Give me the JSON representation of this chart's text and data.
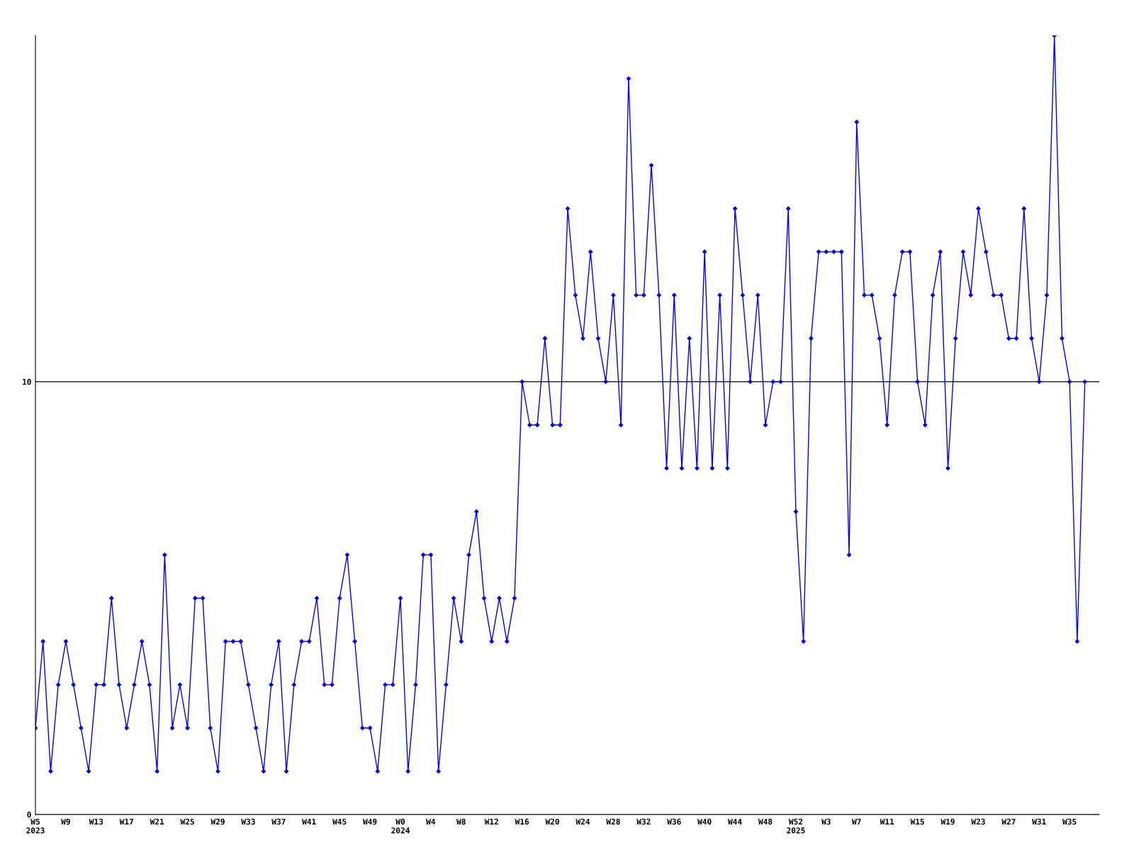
{
  "chart_data": {
    "type": "line",
    "categories": [
      "W5\n2023",
      null,
      null,
      null,
      "W9",
      null,
      null,
      null,
      "W13",
      null,
      null,
      null,
      "W17",
      null,
      null,
      null,
      "W21",
      null,
      null,
      null,
      "W25",
      null,
      null,
      null,
      "W29",
      null,
      null,
      null,
      "W33",
      null,
      null,
      null,
      "W37",
      null,
      null,
      null,
      "W41",
      null,
      null,
      null,
      "W45",
      null,
      null,
      null,
      "W49",
      null,
      null,
      null,
      "W0\n2024",
      null,
      null,
      null,
      "W4",
      null,
      null,
      null,
      "W8",
      null,
      null,
      null,
      "W12",
      null,
      null,
      null,
      "W16",
      null,
      null,
      null,
      "W20",
      null,
      null,
      null,
      "W24",
      null,
      null,
      null,
      "W28",
      null,
      null,
      null,
      "W32",
      null,
      null,
      null,
      "W36",
      null,
      null,
      null,
      "W40",
      null,
      null,
      null,
      "W44",
      null,
      null,
      null,
      "W48",
      null,
      null,
      null,
      "W52\n2025",
      null,
      null,
      null,
      "W3",
      null,
      null,
      null,
      "W7",
      null,
      null,
      null,
      "W11",
      null,
      null,
      null,
      "W15",
      null,
      null,
      null,
      "W19",
      null,
      null,
      null,
      "W23",
      null,
      null,
      null,
      "W27",
      null,
      null,
      null,
      "W31",
      null,
      null,
      null,
      "W35",
      null,
      null
    ],
    "series": [
      {
        "color": "#0000ff",
        "values": [
          2,
          4,
          1,
          3,
          4,
          3,
          2,
          1,
          3,
          3,
          5,
          3,
          2,
          3,
          4,
          3,
          1,
          6,
          2,
          3,
          2,
          5,
          5,
          2,
          1,
          4,
          4,
          4,
          3,
          2,
          1,
          3,
          4,
          1,
          3,
          4,
          4,
          5,
          3,
          3,
          5,
          6,
          4,
          2,
          2,
          1,
          3,
          3,
          5,
          1,
          3,
          6,
          6,
          1,
          3,
          5,
          4,
          6,
          7,
          5,
          4,
          5,
          4,
          5,
          10,
          9,
          9,
          11,
          9,
          9,
          14,
          12,
          11,
          13,
          11,
          10,
          12,
          9,
          17,
          12,
          12,
          15,
          12,
          8,
          12,
          8,
          11,
          8,
          13,
          8,
          12,
          8,
          14,
          12,
          10,
          12,
          9,
          10,
          10,
          14,
          7,
          4,
          11,
          13,
          13,
          13,
          13,
          6,
          16,
          12,
          12,
          11,
          9,
          12,
          13,
          13,
          10,
          9,
          12,
          13,
          8,
          11,
          13,
          12,
          14,
          13,
          12,
          12,
          11,
          11,
          14,
          11,
          10,
          12,
          18,
          11,
          10,
          4,
          10
        ]
      }
    ],
    "ylim": [
      0,
      18
    ],
    "yticks": [
      0,
      10
    ],
    "grid": "y",
    "marker": "diamond",
    "line_style": "solid"
  }
}
